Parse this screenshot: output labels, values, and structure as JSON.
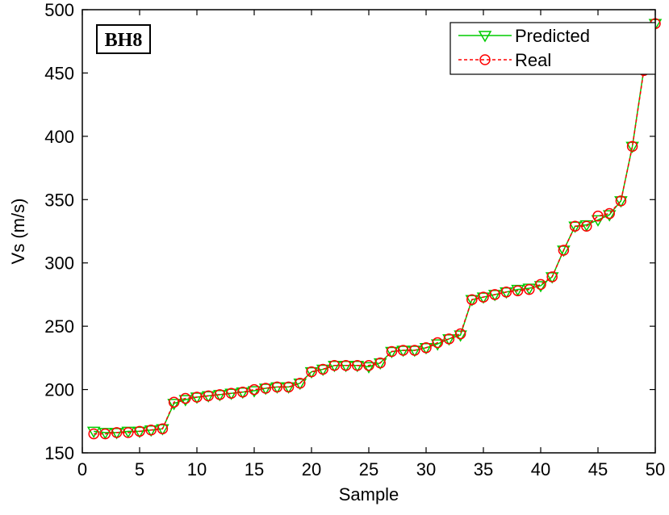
{
  "chart_data": {
    "type": "line",
    "annotation": "BH8",
    "x_label": "Sample",
    "y_label": "Vs (m/s)",
    "x": [
      1,
      2,
      3,
      4,
      5,
      6,
      7,
      8,
      9,
      10,
      11,
      12,
      13,
      14,
      15,
      16,
      17,
      18,
      19,
      20,
      21,
      22,
      23,
      24,
      25,
      26,
      27,
      28,
      29,
      30,
      31,
      32,
      33,
      34,
      35,
      36,
      37,
      38,
      39,
      40,
      41,
      42,
      43,
      44,
      45,
      46,
      47,
      48,
      49,
      50
    ],
    "series": [
      {
        "name": "Predicted",
        "color": "#00cc00",
        "marker": "triangle-down",
        "dash": false,
        "values": [
          167,
          166,
          166,
          167,
          167,
          168,
          169,
          189,
          192,
          194,
          195,
          196,
          197,
          198,
          199,
          201,
          202,
          202,
          205,
          214,
          216,
          219,
          219,
          219,
          218,
          221,
          230,
          231,
          231,
          233,
          236,
          240,
          243,
          271,
          273,
          275,
          277,
          279,
          280,
          282,
          289,
          310,
          329,
          330,
          334,
          338,
          349,
          392,
          453,
          489
        ]
      },
      {
        "name": "Real",
        "color": "#ff0000",
        "marker": "circle",
        "dash": true,
        "values": [
          165,
          165,
          166,
          166,
          167,
          168,
          169,
          190,
          193,
          194,
          195,
          196,
          197,
          198,
          200,
          201,
          202,
          202,
          205,
          214,
          216,
          219,
          219,
          219,
          219,
          221,
          230,
          231,
          231,
          233,
          237,
          240,
          244,
          271,
          273,
          275,
          277,
          278,
          279,
          283,
          289,
          310,
          329,
          329,
          337,
          339,
          349,
          392,
          452,
          489
        ]
      }
    ],
    "xlim": [
      0,
      50
    ],
    "ylim": [
      150,
      500
    ],
    "xticks": [
      0,
      5,
      10,
      15,
      20,
      25,
      30,
      35,
      40,
      45,
      50
    ],
    "yticks": [
      150,
      200,
      250,
      300,
      350,
      400,
      450,
      500
    ],
    "legend": "upper right"
  }
}
